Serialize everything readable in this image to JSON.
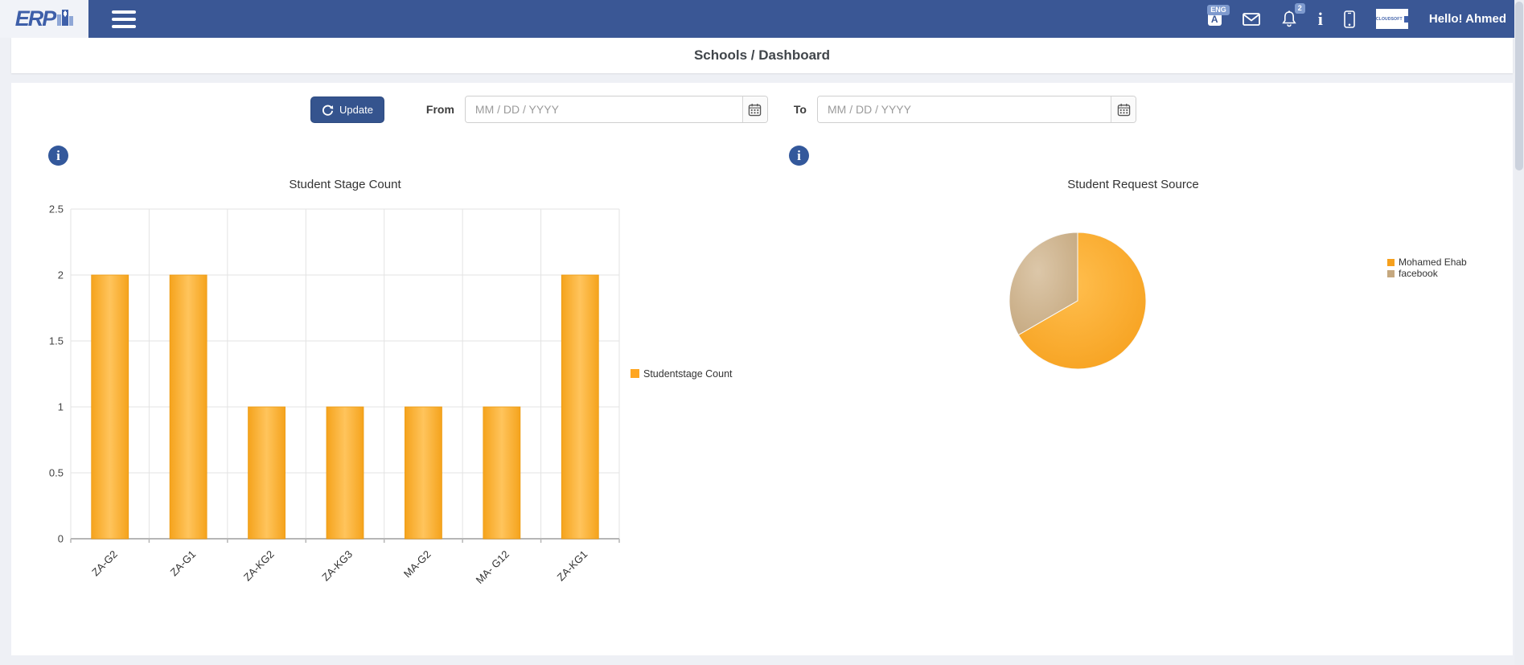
{
  "navbar": {
    "brand": "ERP",
    "language_badge": "ENG",
    "language_glyph": "A",
    "notification_count": "2",
    "info_glyph": "i",
    "avatar_text": "CLOUDSOFT",
    "greeting": "Hello! Ahmed"
  },
  "header": {
    "title": "Schools / Dashboard"
  },
  "filters": {
    "update_label": "Update",
    "from_label": "From",
    "to_label": "To",
    "date_placeholder": "MM / DD / YYYY",
    "from_value": "",
    "to_value": ""
  },
  "info_icon_glyph": "i",
  "colors": {
    "navbar_bg": "#3a5795",
    "button_bg": "#35548e",
    "bar_orange": "#F9A61F",
    "pie_orange": "#F6A01D",
    "pie_tan": "#C5A87F"
  },
  "chart_data": [
    {
      "type": "bar",
      "title": "Student Stage Count",
      "categories": [
        "ZA-G2",
        "ZA-G1",
        "ZA-KG2",
        "ZA-KG3",
        "MA-G2",
        "MA- G12",
        "ZA-KG1"
      ],
      "values": [
        2,
        2,
        1,
        1,
        1,
        1,
        2
      ],
      "ylim": [
        0,
        2.5
      ],
      "ytick_step": 0.5,
      "grid": true,
      "legend_position": "right",
      "legend": [
        {
          "label": "Studentstage Count",
          "color": "#FFA621"
        }
      ],
      "bar_gradient": [
        "#F5A31C",
        "#FFC45C",
        "#F5A31C"
      ],
      "bar_stroke": "#EC9A12"
    },
    {
      "type": "pie",
      "title": "Student Request Source",
      "legend_position": "right",
      "slices": [
        {
          "label": "Mohamed Ehab",
          "value": 2,
          "color": "#F6A01D",
          "color_light": "#FFBE4E"
        },
        {
          "label": "facebook",
          "value": 1,
          "color": "#C5A87F",
          "color_light": "#DCC7A9"
        }
      ]
    }
  ]
}
